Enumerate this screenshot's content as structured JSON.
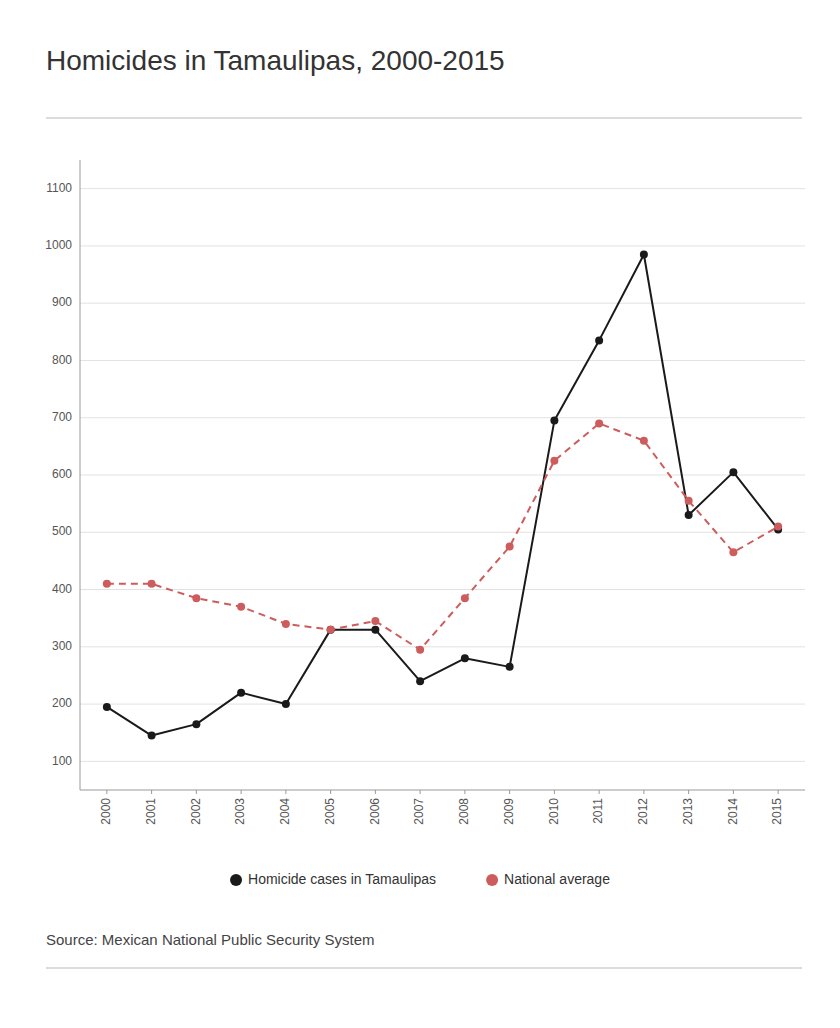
{
  "chart_data": {
    "type": "line",
    "title": "Homicides in Tamaulipas, 2000-2015",
    "source": "Source: Mexican National Public Security System",
    "x": [
      2000,
      2001,
      2002,
      2003,
      2004,
      2005,
      2006,
      2007,
      2008,
      2009,
      2010,
      2011,
      2012,
      2013,
      2014,
      2015
    ],
    "series": [
      {
        "name": "Homicide cases in Tamaulipas",
        "color": "#1a1a1a",
        "marker": "circle",
        "line_style": "solid",
        "values": [
          195,
          145,
          165,
          220,
          200,
          330,
          330,
          240,
          280,
          265,
          695,
          835,
          985,
          530,
          605,
          505
        ]
      },
      {
        "name": "National average",
        "color": "#cd5c5c",
        "marker": "circle",
        "line_style": "dashed",
        "values": [
          410,
          410,
          385,
          370,
          340,
          330,
          345,
          295,
          385,
          475,
          625,
          690,
          660,
          555,
          465,
          510
        ]
      }
    ],
    "xlim": [
      1999.4,
      2015.6
    ],
    "xticks": [
      2000,
      2001,
      2002,
      2003,
      2004,
      2005,
      2006,
      2007,
      2008,
      2009,
      2010,
      2011,
      2012,
      2013,
      2014,
      2015
    ],
    "ylim": [
      50,
      1150
    ],
    "yticks": [
      100,
      200,
      300,
      400,
      500,
      600,
      700,
      800,
      900,
      1000,
      1100
    ],
    "grid": true,
    "legend": "bottom"
  }
}
